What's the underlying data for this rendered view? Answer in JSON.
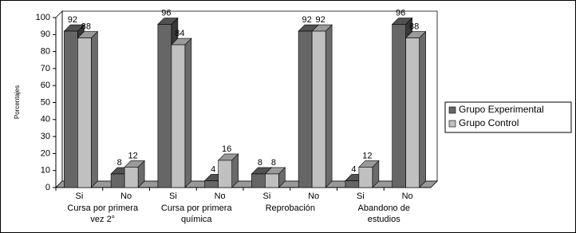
{
  "chart_data": {
    "type": "bar3d",
    "y_label": "Porcentajes",
    "categories": [
      "Si",
      "No",
      "Si",
      "No",
      "Si",
      "No",
      "Si",
      "No"
    ],
    "group_labels": [
      [
        "Cursa por primera",
        "vez 2°"
      ],
      [
        "Cursa por primera",
        "química"
      ],
      [
        "Reprobación"
      ],
      [
        "Abandono de",
        "estudios"
      ]
    ],
    "series": [
      {
        "name": "Grupo Experimental",
        "color": "#666666",
        "values": [
          92,
          8,
          96,
          4,
          8,
          92,
          4,
          96
        ]
      },
      {
        "name": "Grupo Control",
        "color": "#c0c0c0",
        "values": [
          88,
          12,
          84,
          16,
          8,
          92,
          12,
          88
        ]
      }
    ],
    "ylim": [
      0,
      100
    ],
    "yticks": [
      0,
      10,
      20,
      30,
      40,
      50,
      60,
      70,
      80,
      90,
      100
    ],
    "legend": "right"
  }
}
